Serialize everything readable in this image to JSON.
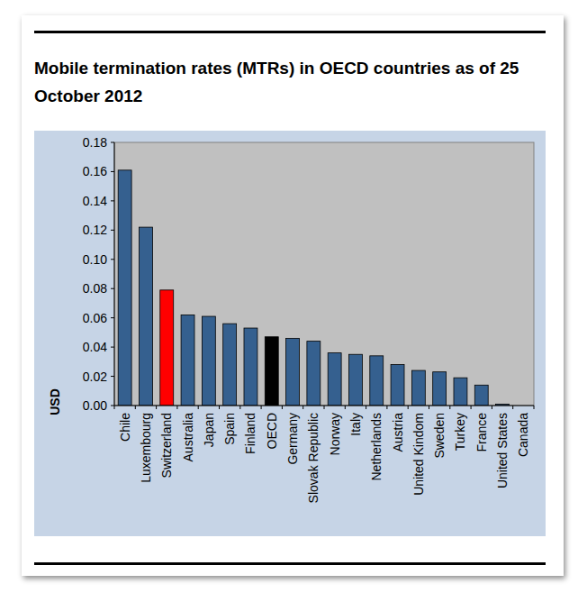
{
  "chart_data": {
    "type": "bar",
    "title": "Mobile termination rates (MTRs) in OECD countries as of 25 October 2012",
    "y_label": "USD",
    "categories": [
      "Chile",
      "Luxembourg",
      "Switzerland",
      "Australia",
      "Japan",
      "Spain",
      "Finland",
      "OECD",
      "Germany",
      "Slovak Republic",
      "Norway",
      "Italy",
      "Netherlands",
      "Austria",
      "United Kindom",
      "Sweden",
      "Turkey",
      "France",
      "United States",
      "Canada"
    ],
    "values": [
      0.161,
      0.122,
      0.079,
      0.062,
      0.061,
      0.056,
      0.053,
      0.047,
      0.046,
      0.044,
      0.036,
      0.035,
      0.034,
      0.028,
      0.024,
      0.023,
      0.019,
      0.014,
      0.001,
      0
    ],
    "colors": [
      "#35608f",
      "#35608f",
      "#ff0000",
      "#35608f",
      "#35608f",
      "#35608f",
      "#35608f",
      "#000000",
      "#35608f",
      "#35608f",
      "#35608f",
      "#35608f",
      "#35608f",
      "#35608f",
      "#35608f",
      "#35608f",
      "#35608f",
      "#35608f",
      "#35608f",
      "#35608f"
    ],
    "ylim": [
      0,
      0.18
    ],
    "yticks": [
      {
        "value": 0,
        "label": "0.00"
      },
      {
        "value": 0.02,
        "label": "0.02"
      },
      {
        "value": 0.04,
        "label": "0.04"
      },
      {
        "value": 0.06,
        "label": "0.06"
      },
      {
        "value": 0.08,
        "label": "0.08"
      },
      {
        "value": 0.1,
        "label": "0.10"
      },
      {
        "value": 0.12,
        "label": "0.12"
      },
      {
        "value": 0.14,
        "label": "0.14"
      },
      {
        "value": 0.16,
        "label": "0.16"
      },
      {
        "value": 0.18,
        "label": "0.18"
      }
    ],
    "grid": false
  }
}
